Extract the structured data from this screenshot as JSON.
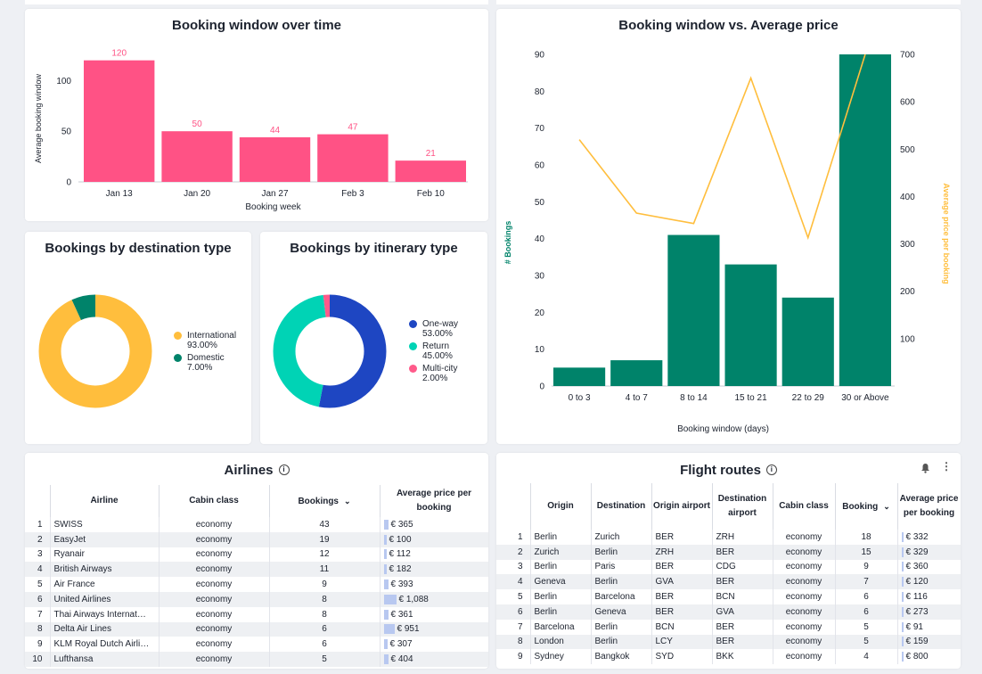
{
  "colors": {
    "pink": "#ff5285",
    "teal_bar": "#00836a",
    "yellow": "#ffbe3d",
    "green_dark": "#00836a",
    "blue": "#1e46c2",
    "aqua": "#00d3b5",
    "pink_small": "#ff5a8a"
  },
  "booking_window_over_time": {
    "title": "Booking window over time",
    "chart_data": {
      "type": "bar",
      "title": "Booking window over time",
      "xlabel": "Booking week",
      "ylabel": "Average booking window",
      "categories": [
        "Jan 13",
        "Jan 20",
        "Jan 27",
        "Feb 3",
        "Feb 10"
      ],
      "values": [
        120,
        50,
        44,
        47,
        21
      ],
      "ylim": [
        0,
        125
      ],
      "yticks": [
        0,
        50,
        100
      ]
    }
  },
  "booking_vs_price": {
    "title": "Booking window vs. Average price",
    "chart_data": {
      "type": "bar",
      "title": "Booking window vs. Average price",
      "xlabel": "Booking window (days)",
      "ylabel": "# Bookings",
      "y2label": "Average price per booking",
      "categories": [
        "0 to 3",
        "4 to 7",
        "8 to 14",
        "15 to 21",
        "22 to 29",
        "30 or Above"
      ],
      "series": [
        {
          "name": "# Bookings",
          "type": "bar",
          "axis": "left",
          "values": [
            5,
            7,
            41,
            33,
            24,
            90
          ]
        },
        {
          "name": "Average price per booking",
          "type": "line",
          "axis": "right",
          "values": [
            520,
            365,
            343,
            650,
            313,
            730
          ]
        }
      ],
      "ylim": [
        0,
        90
      ],
      "y2lim": [
        0,
        700
      ],
      "yticks": [
        0,
        10,
        20,
        30,
        40,
        50,
        60,
        70,
        80,
        90
      ],
      "y2ticks": [
        100,
        200,
        300,
        400,
        500,
        600,
        700
      ]
    }
  },
  "destination_type": {
    "title": "Bookings by destination type",
    "chart_data": {
      "type": "pie",
      "title": "Bookings by destination type",
      "categories": [
        "International",
        "Domestic"
      ],
      "values": [
        93.0,
        7.0
      ],
      "labels_pct": [
        "93.00%",
        "7.00%"
      ]
    }
  },
  "itinerary_type": {
    "title": "Bookings by itinerary type",
    "chart_data": {
      "type": "pie",
      "title": "Bookings by itinerary type",
      "categories": [
        "One-way",
        "Return",
        "Multi-city"
      ],
      "values": [
        53.0,
        45.0,
        2.0
      ],
      "labels_pct": [
        "53.00%",
        "45.00%",
        "2.00%"
      ]
    }
  },
  "airlines": {
    "title": "Airlines",
    "columns": [
      "Airline",
      "Cabin class",
      "Bookings",
      "Average price per booking"
    ],
    "price_max": 1088,
    "rows": [
      {
        "idx": "1",
        "airline": "SWISS",
        "cabin": "economy",
        "bookings": "43",
        "price": "€ 365",
        "price_val": 365
      },
      {
        "idx": "2",
        "airline": "EasyJet",
        "cabin": "economy",
        "bookings": "19",
        "price": "€ 100",
        "price_val": 100
      },
      {
        "idx": "3",
        "airline": "Ryanair",
        "cabin": "economy",
        "bookings": "12",
        "price": "€ 112",
        "price_val": 112
      },
      {
        "idx": "4",
        "airline": "British Airways",
        "cabin": "economy",
        "bookings": "11",
        "price": "€ 182",
        "price_val": 182
      },
      {
        "idx": "5",
        "airline": "Air France",
        "cabin": "economy",
        "bookings": "9",
        "price": "€ 393",
        "price_val": 393
      },
      {
        "idx": "6",
        "airline": "United Airlines",
        "cabin": "economy",
        "bookings": "8",
        "price": "€ 1,088",
        "price_val": 1088
      },
      {
        "idx": "7",
        "airline": "Thai Airways Internat…",
        "cabin": "economy",
        "bookings": "8",
        "price": "€ 361",
        "price_val": 361
      },
      {
        "idx": "8",
        "airline": "Delta Air Lines",
        "cabin": "economy",
        "bookings": "6",
        "price": "€ 951",
        "price_val": 951
      },
      {
        "idx": "9",
        "airline": "KLM Royal Dutch Airli…",
        "cabin": "economy",
        "bookings": "6",
        "price": "€ 307",
        "price_val": 307
      },
      {
        "idx": "10",
        "airline": "Lufthansa",
        "cabin": "economy",
        "bookings": "5",
        "price": "€ 404",
        "price_val": 404
      }
    ]
  },
  "flight_routes": {
    "title": "Flight routes",
    "columns": [
      "Origin",
      "Destination",
      "Origin airport",
      "Destination airport",
      "Cabin class",
      "Booking",
      "Average price per booking"
    ],
    "rows": [
      {
        "idx": "1",
        "origin": "Berlin",
        "dest": "Zurich",
        "oa": "BER",
        "da": "ZRH",
        "cabin": "economy",
        "bookings": "18",
        "price": "€ 332"
      },
      {
        "idx": "2",
        "origin": "Zurich",
        "dest": "Berlin",
        "oa": "ZRH",
        "da": "BER",
        "cabin": "economy",
        "bookings": "15",
        "price": "€ 329"
      },
      {
        "idx": "3",
        "origin": "Berlin",
        "dest": "Paris",
        "oa": "BER",
        "da": "CDG",
        "cabin": "economy",
        "bookings": "9",
        "price": "€ 360"
      },
      {
        "idx": "4",
        "origin": "Geneva",
        "dest": "Berlin",
        "oa": "GVA",
        "da": "BER",
        "cabin": "economy",
        "bookings": "7",
        "price": "€ 120"
      },
      {
        "idx": "5",
        "origin": "Berlin",
        "dest": "Barcelona",
        "oa": "BER",
        "da": "BCN",
        "cabin": "economy",
        "bookings": "6",
        "price": "€ 116"
      },
      {
        "idx": "6",
        "origin": "Berlin",
        "dest": "Geneva",
        "oa": "BER",
        "da": "GVA",
        "cabin": "economy",
        "bookings": "6",
        "price": "€ 273"
      },
      {
        "idx": "7",
        "origin": "Barcelona",
        "dest": "Berlin",
        "oa": "BCN",
        "da": "BER",
        "cabin": "economy",
        "bookings": "5",
        "price": "€ 91"
      },
      {
        "idx": "8",
        "origin": "London",
        "dest": "Berlin",
        "oa": "LCY",
        "da": "BER",
        "cabin": "economy",
        "bookings": "5",
        "price": "€ 159"
      },
      {
        "idx": "9",
        "origin": "Sydney",
        "dest": "Bangkok",
        "oa": "SYD",
        "da": "BKK",
        "cabin": "economy",
        "bookings": "4",
        "price": "€ 800"
      }
    ]
  }
}
